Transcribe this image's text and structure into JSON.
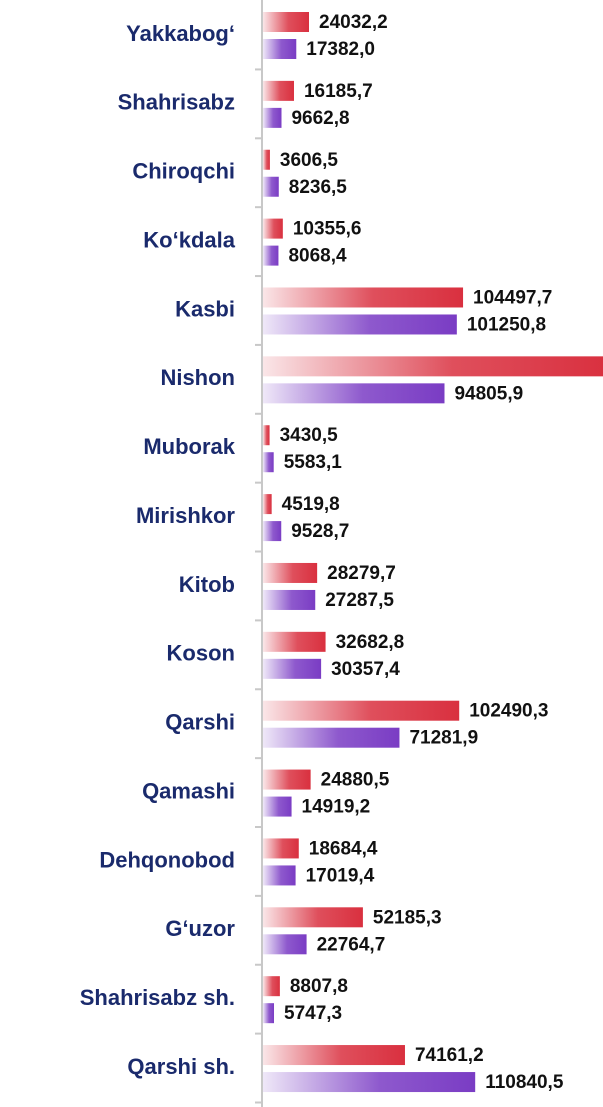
{
  "chart_data": {
    "type": "bar",
    "orientation": "horizontal",
    "categories": [
      "Yakkabog‘",
      "Shahrisabz",
      "Chiroqchi",
      "Ko‘kdala",
      "Kasbi",
      "Nishon",
      "Muborak",
      "Mirishkor",
      "Kitob",
      "Koson",
      "Qarshi",
      "Qamashi",
      "Dehqonobod",
      "G‘uzor",
      "Shahrisabz sh.",
      "Qarshi sh."
    ],
    "series": [
      {
        "color": "#d9303f",
        "values": [
          24032.2,
          16185.7,
          3606.5,
          10355.6,
          104497.7,
          180000,
          3430.5,
          4519.8,
          28279.7,
          32682.8,
          102490.3,
          24880.5,
          18684.4,
          52185.3,
          8807.8,
          74161.2
        ],
        "value_labels": [
          "24032,2",
          "16185,7",
          "3606,5",
          "10355,6",
          "104497,7",
          null,
          "3430,5",
          "4519,8",
          "28279,7",
          "32682,8",
          "102490,3",
          "24880,5",
          "18684,4",
          "52185,3",
          "8807,8",
          "74161,2"
        ]
      },
      {
        "color": "#7a3cc4",
        "values": [
          17382.0,
          9662.8,
          8236.5,
          8068.4,
          101250.8,
          94805.9,
          5583.1,
          9528.7,
          27287.5,
          30357.4,
          71281.9,
          14919.2,
          17019.4,
          22764.7,
          5747.3,
          110840.5
        ],
        "value_labels": [
          "17382,0",
          "9662,8",
          "8236,5",
          "8068,4",
          "101250,8",
          "94805,9",
          "5583,1",
          "9528,7",
          "27287,5",
          "30357,4",
          "71281,9",
          "14919,2",
          "17019,4",
          "22764,7",
          "5747,3",
          "110840,5"
        ]
      }
    ],
    "xlim": [
      0,
      177600
    ]
  }
}
